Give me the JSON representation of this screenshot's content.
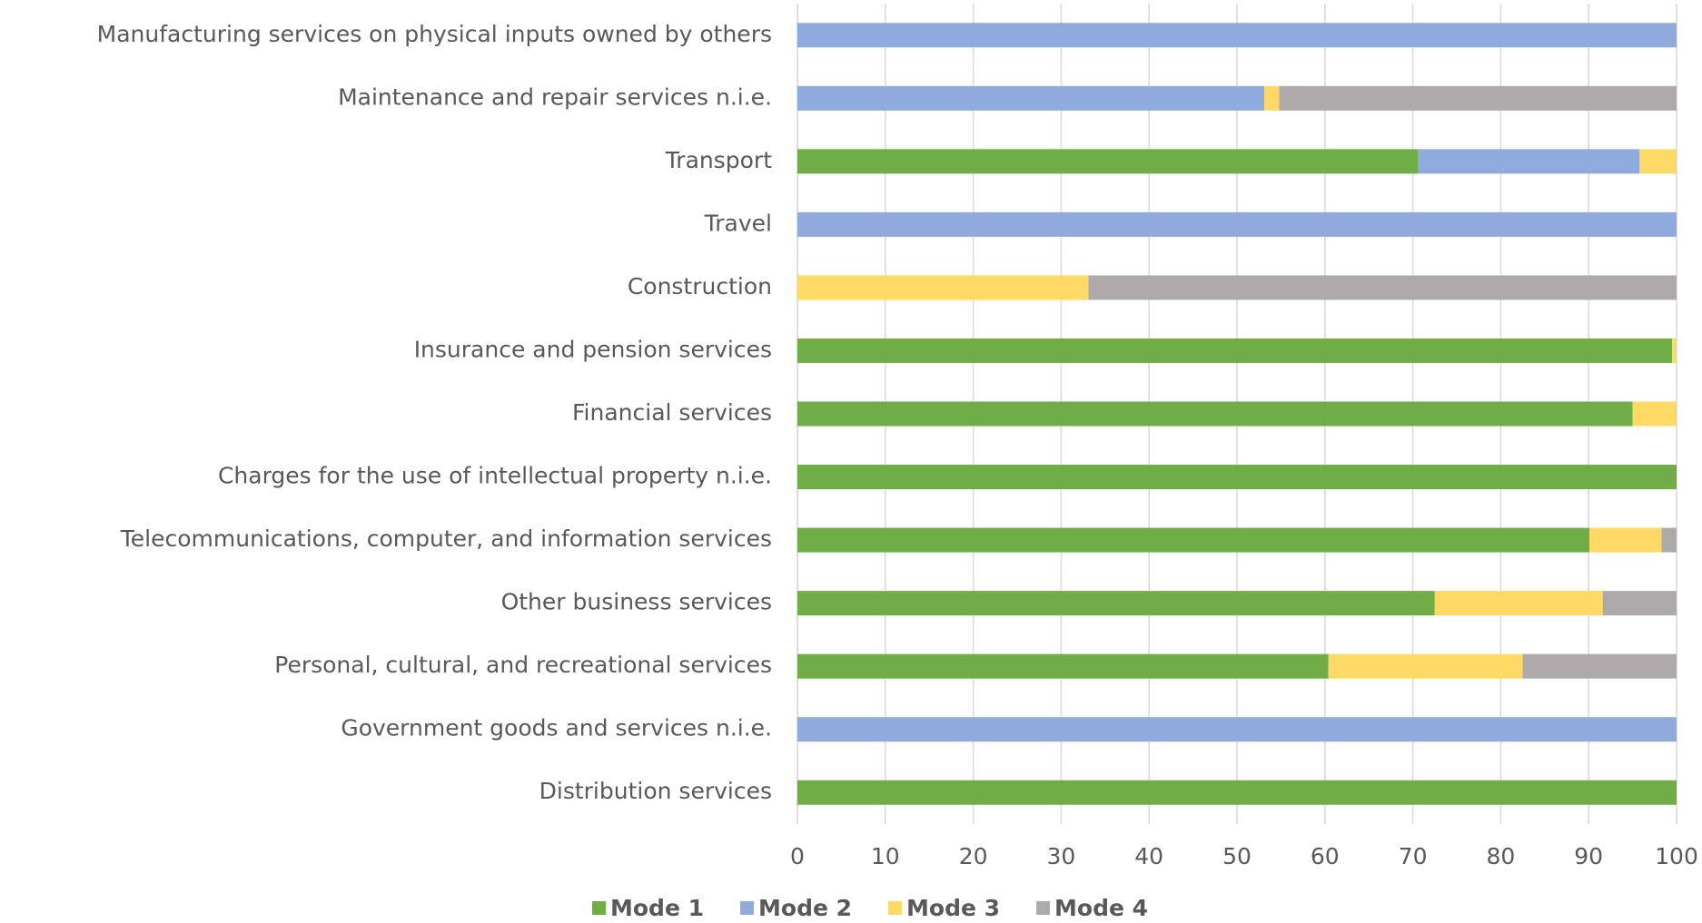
{
  "chart_data": {
    "type": "stacked_barh",
    "categories": [
      "Manufacturing services on physical inputs owned by others",
      "Maintenance and repair services n.i.e.",
      "Transport",
      "Travel",
      "Construction",
      "Insurance and pension services",
      "Financial services",
      "Charges for the use of intellectual property n.i.e.",
      "Telecommunications, computer, and information services",
      "Other business services",
      "Personal, cultural, and recreational services",
      "Government goods and services n.i.e.",
      "Distribution services"
    ],
    "series": [
      {
        "name": "Mode 1",
        "color": "#70ad47",
        "values": [
          0,
          0,
          70.6,
          0,
          0,
          99.5,
          95.0,
          100,
          90.1,
          72.5,
          60.4,
          0,
          100
        ]
      },
      {
        "name": "Mode 2",
        "color": "#8faadc",
        "values": [
          100,
          53.1,
          25.2,
          100,
          0,
          0,
          0,
          0,
          0,
          0,
          0,
          100,
          0
        ]
      },
      {
        "name": "Mode 3",
        "color": "#ffd966",
        "values": [
          0,
          1.7,
          4.2,
          0,
          33.1,
          0.5,
          5.0,
          0,
          8.2,
          19.1,
          22.1,
          0,
          0
        ]
      },
      {
        "name": "Mode 4",
        "color": "#aeaaaa",
        "values": [
          0,
          45.2,
          0,
          0,
          66.9,
          0,
          0,
          0,
          1.7,
          8.4,
          17.5,
          0,
          0
        ]
      }
    ],
    "xlim": [
      0,
      100
    ],
    "xticks": [
      0,
      10,
      20,
      30,
      40,
      50,
      60,
      70,
      80,
      90,
      100
    ],
    "grid": true,
    "legend": "bottom"
  }
}
